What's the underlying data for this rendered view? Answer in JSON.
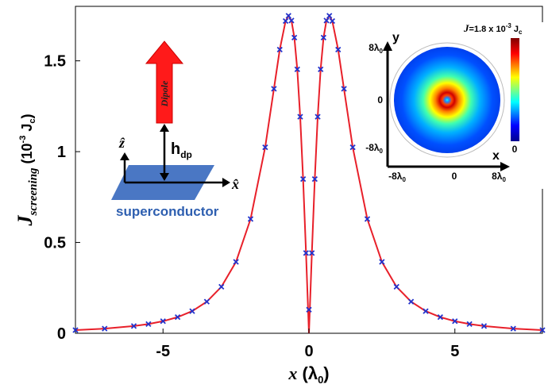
{
  "chart_data": {
    "type": "line",
    "xlabel": {
      "main": "x",
      "open": " (λ",
      "sub": "0",
      "close": ")"
    },
    "ylabel": {
      "main": "J",
      "sub": "screening",
      "open": " (10",
      "sup": "-3",
      "unit": " J",
      "unitsub": "c",
      "close": ")"
    },
    "xlim": [
      -8,
      8
    ],
    "xticks": [
      -5,
      0,
      5
    ],
    "ylim": [
      0,
      1.8
    ],
    "yticks": [
      0,
      0.5,
      1,
      1.5
    ],
    "series": [
      {
        "kind": "line",
        "color": "#e8202a",
        "x": [
          -8,
          -7,
          -6,
          -5.5,
          -5,
          -4.5,
          -4,
          -3.5,
          -3,
          -2.5,
          -2,
          -1.5,
          -1.2,
          -1,
          -0.8,
          -0.7,
          -0.6,
          -0.5,
          -0.4,
          -0.3,
          -0.2,
          -0.1,
          0,
          0.1,
          0.2,
          0.3,
          0.4,
          0.5,
          0.6,
          0.7,
          0.8,
          1,
          1.2,
          1.5,
          2,
          2.5,
          3,
          3.5,
          4,
          4.5,
          5,
          5.5,
          6,
          7,
          8
        ],
        "values": [
          0.0174,
          0.0256,
          0.0398,
          0.0509,
          0.0665,
          0.0889,
          0.122,
          0.174,
          0.256,
          0.393,
          0.629,
          1.024,
          1.346,
          1.562,
          1.719,
          1.748,
          1.722,
          1.628,
          1.453,
          1.192,
          0.849,
          0.442,
          0,
          0.442,
          0.849,
          1.192,
          1.453,
          1.628,
          1.722,
          1.748,
          1.719,
          1.562,
          1.346,
          1.024,
          0.629,
          0.393,
          0.256,
          0.174,
          0.122,
          0.0889,
          0.0665,
          0.0509,
          0.0398,
          0.0256,
          0.0174
        ]
      },
      {
        "kind": "scatter",
        "color": "#2233cc",
        "x": [
          -8,
          -7,
          -6,
          -5.5,
          -5,
          -4.5,
          -4,
          -3.5,
          -3,
          -2.5,
          -2,
          -1.5,
          -1.2,
          -1,
          -0.8,
          -0.7,
          -0.6,
          -0.5,
          -0.4,
          -0.3,
          -0.2,
          -0.1,
          0,
          0.1,
          0.2,
          0.3,
          0.4,
          0.5,
          0.6,
          0.7,
          0.8,
          1,
          1.2,
          1.5,
          2,
          2.5,
          3,
          3.5,
          4,
          4.5,
          5,
          5.5,
          6,
          7,
          8
        ],
        "values": [
          0.0174,
          0.0256,
          0.0398,
          0.0509,
          0.0665,
          0.0889,
          0.122,
          0.174,
          0.256,
          0.393,
          0.629,
          1.024,
          1.346,
          1.562,
          1.719,
          1.748,
          1.722,
          1.628,
          1.453,
          1.192,
          0.849,
          0.442,
          0.13,
          0.442,
          0.849,
          1.192,
          1.453,
          1.628,
          1.722,
          1.748,
          1.719,
          1.562,
          1.346,
          1.024,
          0.629,
          0.393,
          0.256,
          0.174,
          0.122,
          0.0889,
          0.0665,
          0.0509,
          0.0398,
          0.0256,
          0.0174
        ]
      }
    ]
  },
  "diagram": {
    "arrow": "Dipole",
    "height": "h",
    "height_sub": "dp",
    "z_axis": "ẑ",
    "x_axis": "x̂",
    "plate": "superconductor"
  },
  "inset": {
    "title": {
      "main": "J",
      "eq": "=1.8 x 10",
      "sup": "-3",
      "unit": " J",
      "unitsub": "c"
    },
    "y_label": "y",
    "x_label": "x",
    "colorbar_min": "0",
    "y_ticks": [
      {
        "t": "8λ",
        "s": "0"
      },
      {
        "t": "0",
        "s": ""
      },
      {
        "t": "-8λ",
        "s": "0"
      }
    ],
    "x_ticks": [
      {
        "t": "-8λ",
        "s": "0"
      },
      {
        "t": "0",
        "s": ""
      },
      {
        "t": "8λ",
        "s": "0"
      }
    ]
  }
}
